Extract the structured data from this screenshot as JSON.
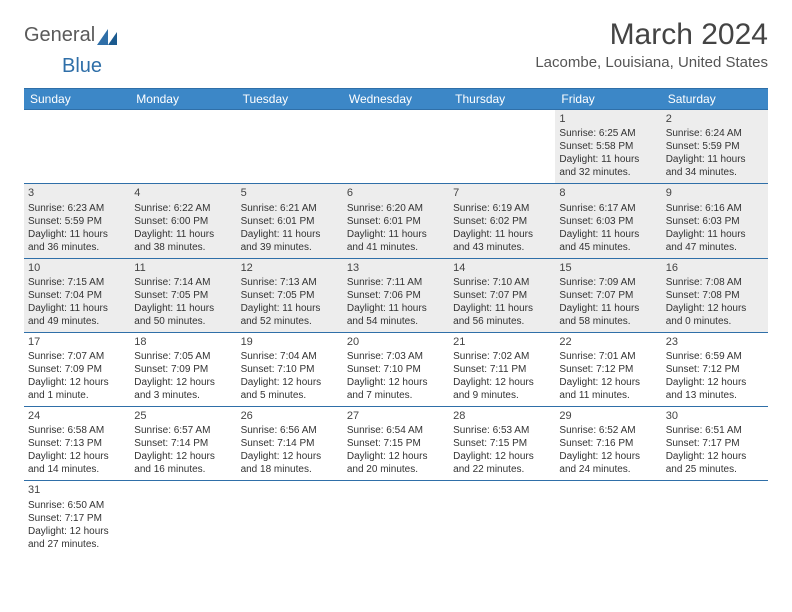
{
  "logo": {
    "text_general": "General",
    "text_blue": "Blue"
  },
  "title": "March 2024",
  "location": "Lacombe, Louisiana, United States",
  "colors": {
    "header_bg": "#3c87c7",
    "header_text": "#ffffff",
    "border": "#2f6fa8",
    "shaded_bg": "#ededed",
    "body_bg": "#ffffff",
    "text": "#333333",
    "logo_gray": "#5a5a5a",
    "logo_blue": "#2f6fa8"
  },
  "weekdays": [
    "Sunday",
    "Monday",
    "Tuesday",
    "Wednesday",
    "Thursday",
    "Friday",
    "Saturday"
  ],
  "weeks": [
    [
      {
        "empty": true
      },
      {
        "empty": true
      },
      {
        "empty": true
      },
      {
        "empty": true
      },
      {
        "empty": true
      },
      {
        "day": "1",
        "shaded": true,
        "sunrise": "Sunrise: 6:25 AM",
        "sunset": "Sunset: 5:58 PM",
        "dayl1": "Daylight: 11 hours",
        "dayl2": "and 32 minutes."
      },
      {
        "day": "2",
        "shaded": true,
        "sunrise": "Sunrise: 6:24 AM",
        "sunset": "Sunset: 5:59 PM",
        "dayl1": "Daylight: 11 hours",
        "dayl2": "and 34 minutes."
      }
    ],
    [
      {
        "day": "3",
        "shaded": true,
        "sunrise": "Sunrise: 6:23 AM",
        "sunset": "Sunset: 5:59 PM",
        "dayl1": "Daylight: 11 hours",
        "dayl2": "and 36 minutes."
      },
      {
        "day": "4",
        "shaded": true,
        "sunrise": "Sunrise: 6:22 AM",
        "sunset": "Sunset: 6:00 PM",
        "dayl1": "Daylight: 11 hours",
        "dayl2": "and 38 minutes."
      },
      {
        "day": "5",
        "shaded": true,
        "sunrise": "Sunrise: 6:21 AM",
        "sunset": "Sunset: 6:01 PM",
        "dayl1": "Daylight: 11 hours",
        "dayl2": "and 39 minutes."
      },
      {
        "day": "6",
        "shaded": true,
        "sunrise": "Sunrise: 6:20 AM",
        "sunset": "Sunset: 6:01 PM",
        "dayl1": "Daylight: 11 hours",
        "dayl2": "and 41 minutes."
      },
      {
        "day": "7",
        "shaded": true,
        "sunrise": "Sunrise: 6:19 AM",
        "sunset": "Sunset: 6:02 PM",
        "dayl1": "Daylight: 11 hours",
        "dayl2": "and 43 minutes."
      },
      {
        "day": "8",
        "shaded": true,
        "sunrise": "Sunrise: 6:17 AM",
        "sunset": "Sunset: 6:03 PM",
        "dayl1": "Daylight: 11 hours",
        "dayl2": "and 45 minutes."
      },
      {
        "day": "9",
        "shaded": true,
        "sunrise": "Sunrise: 6:16 AM",
        "sunset": "Sunset: 6:03 PM",
        "dayl1": "Daylight: 11 hours",
        "dayl2": "and 47 minutes."
      }
    ],
    [
      {
        "day": "10",
        "shaded": true,
        "sunrise": "Sunrise: 7:15 AM",
        "sunset": "Sunset: 7:04 PM",
        "dayl1": "Daylight: 11 hours",
        "dayl2": "and 49 minutes."
      },
      {
        "day": "11",
        "shaded": true,
        "sunrise": "Sunrise: 7:14 AM",
        "sunset": "Sunset: 7:05 PM",
        "dayl1": "Daylight: 11 hours",
        "dayl2": "and 50 minutes."
      },
      {
        "day": "12",
        "shaded": true,
        "sunrise": "Sunrise: 7:13 AM",
        "sunset": "Sunset: 7:05 PM",
        "dayl1": "Daylight: 11 hours",
        "dayl2": "and 52 minutes."
      },
      {
        "day": "13",
        "shaded": true,
        "sunrise": "Sunrise: 7:11 AM",
        "sunset": "Sunset: 7:06 PM",
        "dayl1": "Daylight: 11 hours",
        "dayl2": "and 54 minutes."
      },
      {
        "day": "14",
        "shaded": true,
        "sunrise": "Sunrise: 7:10 AM",
        "sunset": "Sunset: 7:07 PM",
        "dayl1": "Daylight: 11 hours",
        "dayl2": "and 56 minutes."
      },
      {
        "day": "15",
        "shaded": true,
        "sunrise": "Sunrise: 7:09 AM",
        "sunset": "Sunset: 7:07 PM",
        "dayl1": "Daylight: 11 hours",
        "dayl2": "and 58 minutes."
      },
      {
        "day": "16",
        "shaded": true,
        "sunrise": "Sunrise: 7:08 AM",
        "sunset": "Sunset: 7:08 PM",
        "dayl1": "Daylight: 12 hours",
        "dayl2": "and 0 minutes."
      }
    ],
    [
      {
        "day": "17",
        "shaded": false,
        "sunrise": "Sunrise: 7:07 AM",
        "sunset": "Sunset: 7:09 PM",
        "dayl1": "Daylight: 12 hours",
        "dayl2": "and 1 minute."
      },
      {
        "day": "18",
        "shaded": false,
        "sunrise": "Sunrise: 7:05 AM",
        "sunset": "Sunset: 7:09 PM",
        "dayl1": "Daylight: 12 hours",
        "dayl2": "and 3 minutes."
      },
      {
        "day": "19",
        "shaded": false,
        "sunrise": "Sunrise: 7:04 AM",
        "sunset": "Sunset: 7:10 PM",
        "dayl1": "Daylight: 12 hours",
        "dayl2": "and 5 minutes."
      },
      {
        "day": "20",
        "shaded": false,
        "sunrise": "Sunrise: 7:03 AM",
        "sunset": "Sunset: 7:10 PM",
        "dayl1": "Daylight: 12 hours",
        "dayl2": "and 7 minutes."
      },
      {
        "day": "21",
        "shaded": false,
        "sunrise": "Sunrise: 7:02 AM",
        "sunset": "Sunset: 7:11 PM",
        "dayl1": "Daylight: 12 hours",
        "dayl2": "and 9 minutes."
      },
      {
        "day": "22",
        "shaded": false,
        "sunrise": "Sunrise: 7:01 AM",
        "sunset": "Sunset: 7:12 PM",
        "dayl1": "Daylight: 12 hours",
        "dayl2": "and 11 minutes."
      },
      {
        "day": "23",
        "shaded": false,
        "sunrise": "Sunrise: 6:59 AM",
        "sunset": "Sunset: 7:12 PM",
        "dayl1": "Daylight: 12 hours",
        "dayl2": "and 13 minutes."
      }
    ],
    [
      {
        "day": "24",
        "shaded": false,
        "sunrise": "Sunrise: 6:58 AM",
        "sunset": "Sunset: 7:13 PM",
        "dayl1": "Daylight: 12 hours",
        "dayl2": "and 14 minutes."
      },
      {
        "day": "25",
        "shaded": false,
        "sunrise": "Sunrise: 6:57 AM",
        "sunset": "Sunset: 7:14 PM",
        "dayl1": "Daylight: 12 hours",
        "dayl2": "and 16 minutes."
      },
      {
        "day": "26",
        "shaded": false,
        "sunrise": "Sunrise: 6:56 AM",
        "sunset": "Sunset: 7:14 PM",
        "dayl1": "Daylight: 12 hours",
        "dayl2": "and 18 minutes."
      },
      {
        "day": "27",
        "shaded": false,
        "sunrise": "Sunrise: 6:54 AM",
        "sunset": "Sunset: 7:15 PM",
        "dayl1": "Daylight: 12 hours",
        "dayl2": "and 20 minutes."
      },
      {
        "day": "28",
        "shaded": false,
        "sunrise": "Sunrise: 6:53 AM",
        "sunset": "Sunset: 7:15 PM",
        "dayl1": "Daylight: 12 hours",
        "dayl2": "and 22 minutes."
      },
      {
        "day": "29",
        "shaded": false,
        "sunrise": "Sunrise: 6:52 AM",
        "sunset": "Sunset: 7:16 PM",
        "dayl1": "Daylight: 12 hours",
        "dayl2": "and 24 minutes."
      },
      {
        "day": "30",
        "shaded": false,
        "sunrise": "Sunrise: 6:51 AM",
        "sunset": "Sunset: 7:17 PM",
        "dayl1": "Daylight: 12 hours",
        "dayl2": "and 25 minutes."
      }
    ],
    [
      {
        "day": "31",
        "shaded": false,
        "sunrise": "Sunrise: 6:50 AM",
        "sunset": "Sunset: 7:17 PM",
        "dayl1": "Daylight: 12 hours",
        "dayl2": "and 27 minutes."
      },
      {
        "empty": true
      },
      {
        "empty": true
      },
      {
        "empty": true
      },
      {
        "empty": true
      },
      {
        "empty": true
      },
      {
        "empty": true
      }
    ]
  ]
}
